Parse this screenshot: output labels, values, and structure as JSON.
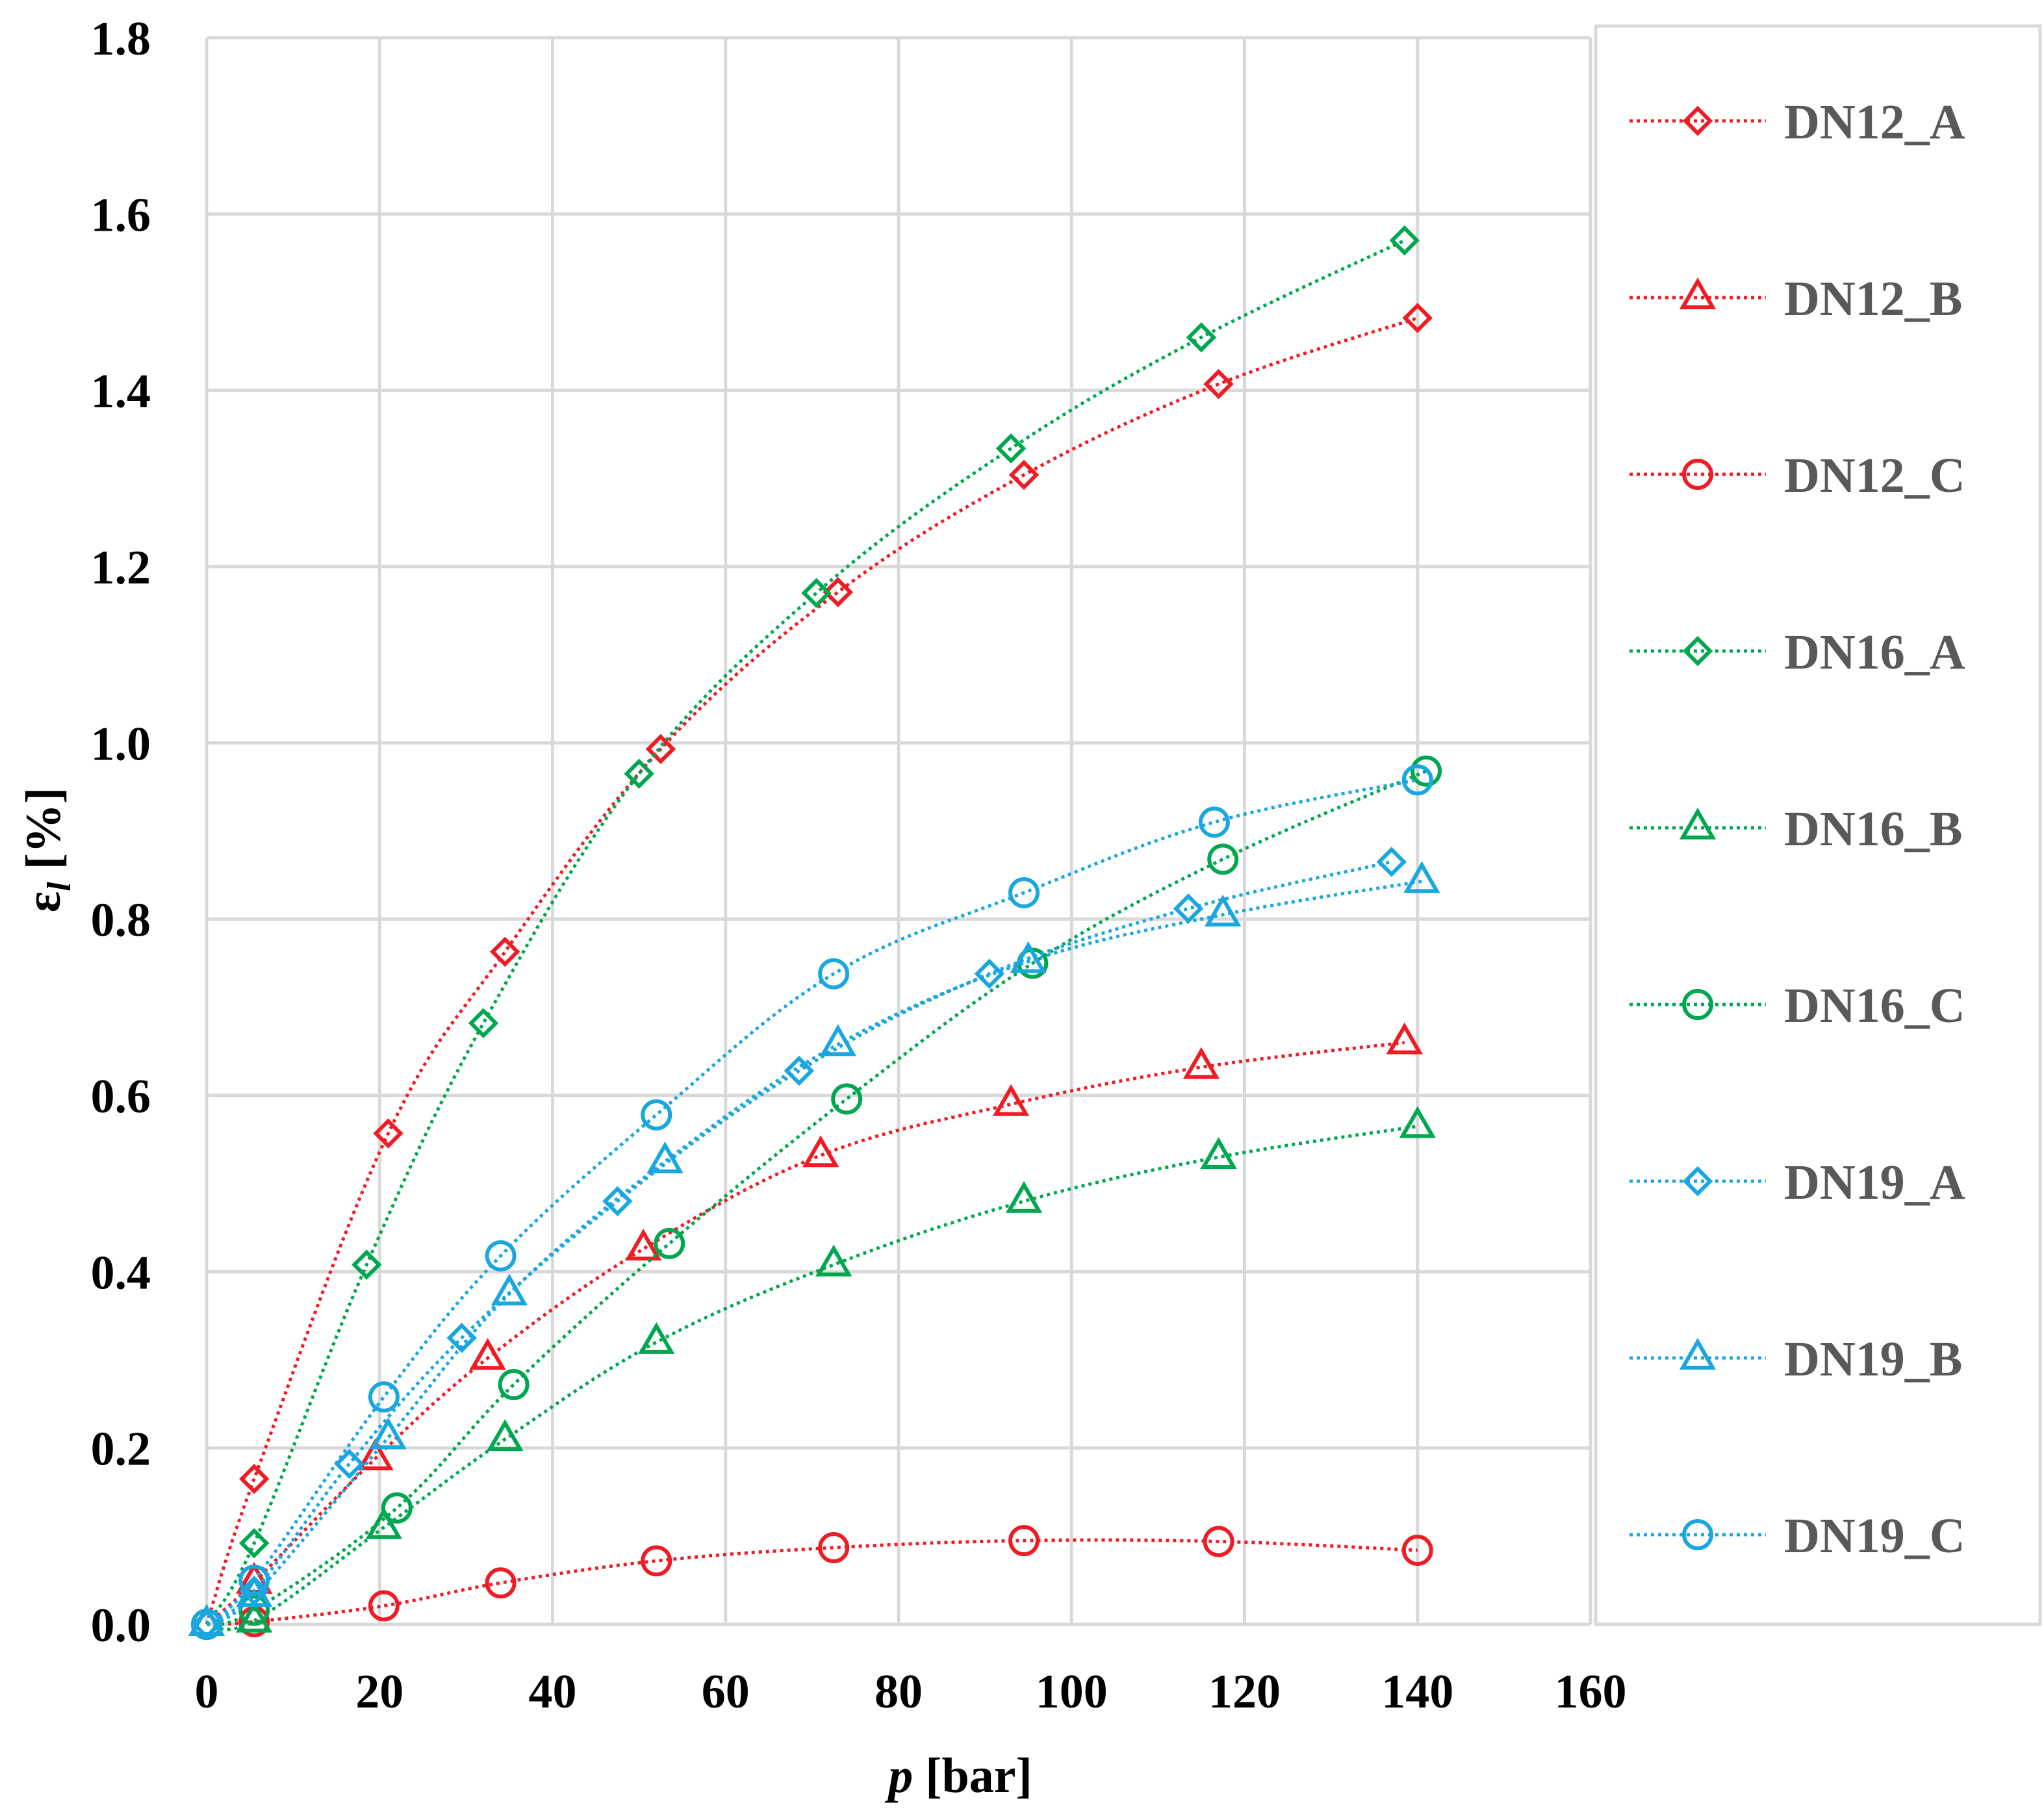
{
  "chart_data": {
    "type": "line",
    "title": "",
    "xlabel": {
      "var": "p",
      "unit": "[bar]"
    },
    "ylabel": {
      "var": "ε",
      "sub": "l",
      "unit": "[%]"
    },
    "xlim": [
      0,
      160
    ],
    "ylim": [
      0,
      1.8
    ],
    "x_ticks": [
      "0",
      "20",
      "40",
      "60",
      "80",
      "100",
      "120",
      "140",
      "160"
    ],
    "y_ticks": [
      "0.0",
      "0.2",
      "0.4",
      "0.6",
      "0.8",
      "1.0",
      "1.2",
      "1.4",
      "1.6",
      "1.8"
    ],
    "grid": true,
    "legend_position": "right",
    "series": [
      {
        "name": "DN12_A",
        "color": "#ee1c24",
        "marker": "diamond",
        "x": [
          0,
          5.5,
          21,
          34.5,
          52.5,
          73,
          94.5,
          117,
          140
        ],
        "y": [
          0,
          0.165,
          0.557,
          0.763,
          0.993,
          1.171,
          1.304,
          1.407,
          1.482
        ]
      },
      {
        "name": "DN12_B",
        "color": "#ee1c24",
        "marker": "triangle",
        "x": [
          0,
          5.5,
          19.5,
          32.5,
          50.5,
          71,
          93,
          115,
          138.5
        ],
        "y": [
          0,
          0.048,
          0.188,
          0.302,
          0.426,
          0.532,
          0.59,
          0.632,
          0.66
        ]
      },
      {
        "name": "DN12_C",
        "color": "#ee1c24",
        "marker": "circle",
        "x": [
          0,
          5.5,
          20.5,
          34,
          52,
          72.5,
          94.5,
          117,
          140
        ],
        "y": [
          0,
          0.003,
          0.021,
          0.047,
          0.072,
          0.087,
          0.095,
          0.094,
          0.084
        ]
      },
      {
        "name": "DN16_A",
        "color": "#00a74f",
        "marker": "diamond",
        "x": [
          0,
          5.5,
          18.5,
          32,
          50,
          70.5,
          93,
          115,
          138.5
        ],
        "y": [
          0,
          0.092,
          0.408,
          0.682,
          0.965,
          1.17,
          1.334,
          1.46,
          1.57
        ]
      },
      {
        "name": "DN16_B",
        "color": "#00a74f",
        "marker": "triangle",
        "x": [
          0,
          5.5,
          20.5,
          34.5,
          52,
          72.5,
          94.5,
          117,
          140
        ],
        "y": [
          0,
          0.004,
          0.11,
          0.21,
          0.32,
          0.408,
          0.48,
          0.53,
          0.565
        ]
      },
      {
        "name": "DN16_C",
        "color": "#00a74f",
        "marker": "circle",
        "x": [
          0,
          5.5,
          22,
          35.5,
          53.5,
          74,
          95.5,
          117.5,
          141
        ],
        "y": [
          0,
          0.016,
          0.132,
          0.272,
          0.432,
          0.596,
          0.75,
          0.868,
          0.968
        ]
      },
      {
        "name": "DN19_A",
        "color": "#1aa7e0",
        "marker": "diamond",
        "x": [
          0,
          5.5,
          16.5,
          29.5,
          47.5,
          68.5,
          90.5,
          113.5,
          137
        ],
        "y": [
          0,
          0.038,
          0.182,
          0.325,
          0.48,
          0.628,
          0.738,
          0.812,
          0.865
        ]
      },
      {
        "name": "DN19_B",
        "color": "#1aa7e0",
        "marker": "triangle",
        "x": [
          0,
          5.5,
          21,
          35,
          53,
          73,
          95,
          117.5,
          140.5
        ],
        "y": [
          0,
          0.033,
          0.212,
          0.375,
          0.525,
          0.658,
          0.752,
          0.805,
          0.843
        ]
      },
      {
        "name": "DN19_C",
        "color": "#1aa7e0",
        "marker": "circle",
        "x": [
          0,
          5.5,
          20.5,
          34,
          52,
          72.5,
          94.5,
          116.5,
          140
        ],
        "y": [
          0,
          0.05,
          0.258,
          0.418,
          0.578,
          0.738,
          0.83,
          0.91,
          0.958
        ]
      }
    ]
  }
}
